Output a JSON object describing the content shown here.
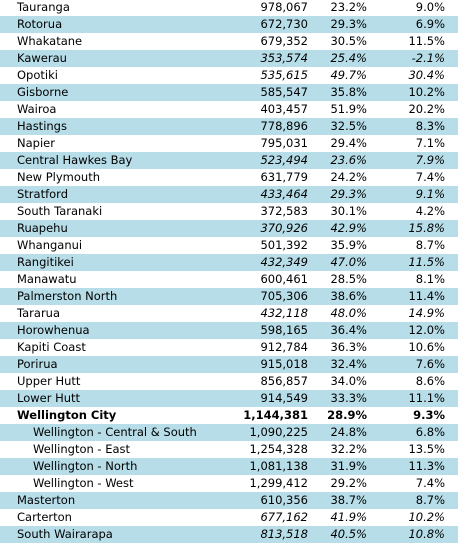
{
  "table": {
    "rows": [
      [
        "Tauranga",
        "978,067",
        "23.2%",
        "9.0%"
      ],
      [
        "Rotorua",
        "672,730",
        "29.3%",
        "6.9%"
      ],
      [
        "Whakatane",
        "679,352",
        "30.5%",
        "11.5%"
      ],
      [
        "Kawerau",
        "353,574",
        "25.4%",
        "-2.1%"
      ],
      [
        "Opotiki",
        "535,615",
        "49.7%",
        "30.4%"
      ],
      [
        "Gisborne",
        "585,547",
        "35.8%",
        "10.2%"
      ],
      [
        "Wairoa",
        "403,457",
        "51.9%",
        "20.2%"
      ],
      [
        "Hastings",
        "778,896",
        "32.5%",
        "8.3%"
      ],
      [
        "Napier",
        "795,031",
        "29.4%",
        "7.1%"
      ],
      [
        "Central Hawkes Bay",
        "523,494",
        "23.6%",
        "7.9%"
      ],
      [
        "New Plymouth",
        "631,779",
        "24.2%",
        "7.4%"
      ],
      [
        "Stratford",
        "433,464",
        "29.3%",
        "9.1%"
      ],
      [
        "South Taranaki",
        "372,583",
        "30.1%",
        "4.2%"
      ],
      [
        "Ruapehu",
        "370,926",
        "42.9%",
        "15.8%"
      ],
      [
        "Whanganui",
        "501,392",
        "35.9%",
        "8.7%"
      ],
      [
        "Rangitikei",
        "432,349",
        "47.0%",
        "11.5%"
      ],
      [
        "Manawatu",
        "600,461",
        "28.5%",
        "8.1%"
      ],
      [
        "Palmerston North",
        "705,306",
        "38.6%",
        "11.4%"
      ],
      [
        "Tararua",
        "432,118",
        "48.0%",
        "14.9%"
      ],
      [
        "Horowhenua",
        "598,165",
        "36.4%",
        "12.0%"
      ],
      [
        "Kapiti Coast",
        "912,784",
        "36.3%",
        "10.6%"
      ],
      [
        "Porirua",
        "915,018",
        "32.4%",
        "7.6%"
      ],
      [
        "Upper Hutt",
        "856,857",
        "34.0%",
        "8.6%"
      ],
      [
        "Lower Hutt",
        "914,549",
        "33.3%",
        "11.1%"
      ],
      [
        "Wellington City",
        "1,144,381",
        "28.9%",
        "9.3%"
      ],
      [
        "Wellington - Central & South",
        "1,090,225",
        "24.8%",
        "6.8%"
      ],
      [
        "Wellington - East",
        "1,254,328",
        "32.2%",
        "13.5%"
      ],
      [
        "Wellington - North",
        "1,081,138",
        "31.9%",
        "11.3%"
      ],
      [
        "Wellington - West",
        "1,299,412",
        "29.2%",
        "7.4%"
      ],
      [
        "Masterton",
        "610,356",
        "38.7%",
        "8.7%"
      ],
      [
        "Carterton",
        "677,162",
        "41.9%",
        "10.2%"
      ],
      [
        "South Wairarapa",
        "813,518",
        "40.5%",
        "10.8%"
      ]
    ]
  }
}
